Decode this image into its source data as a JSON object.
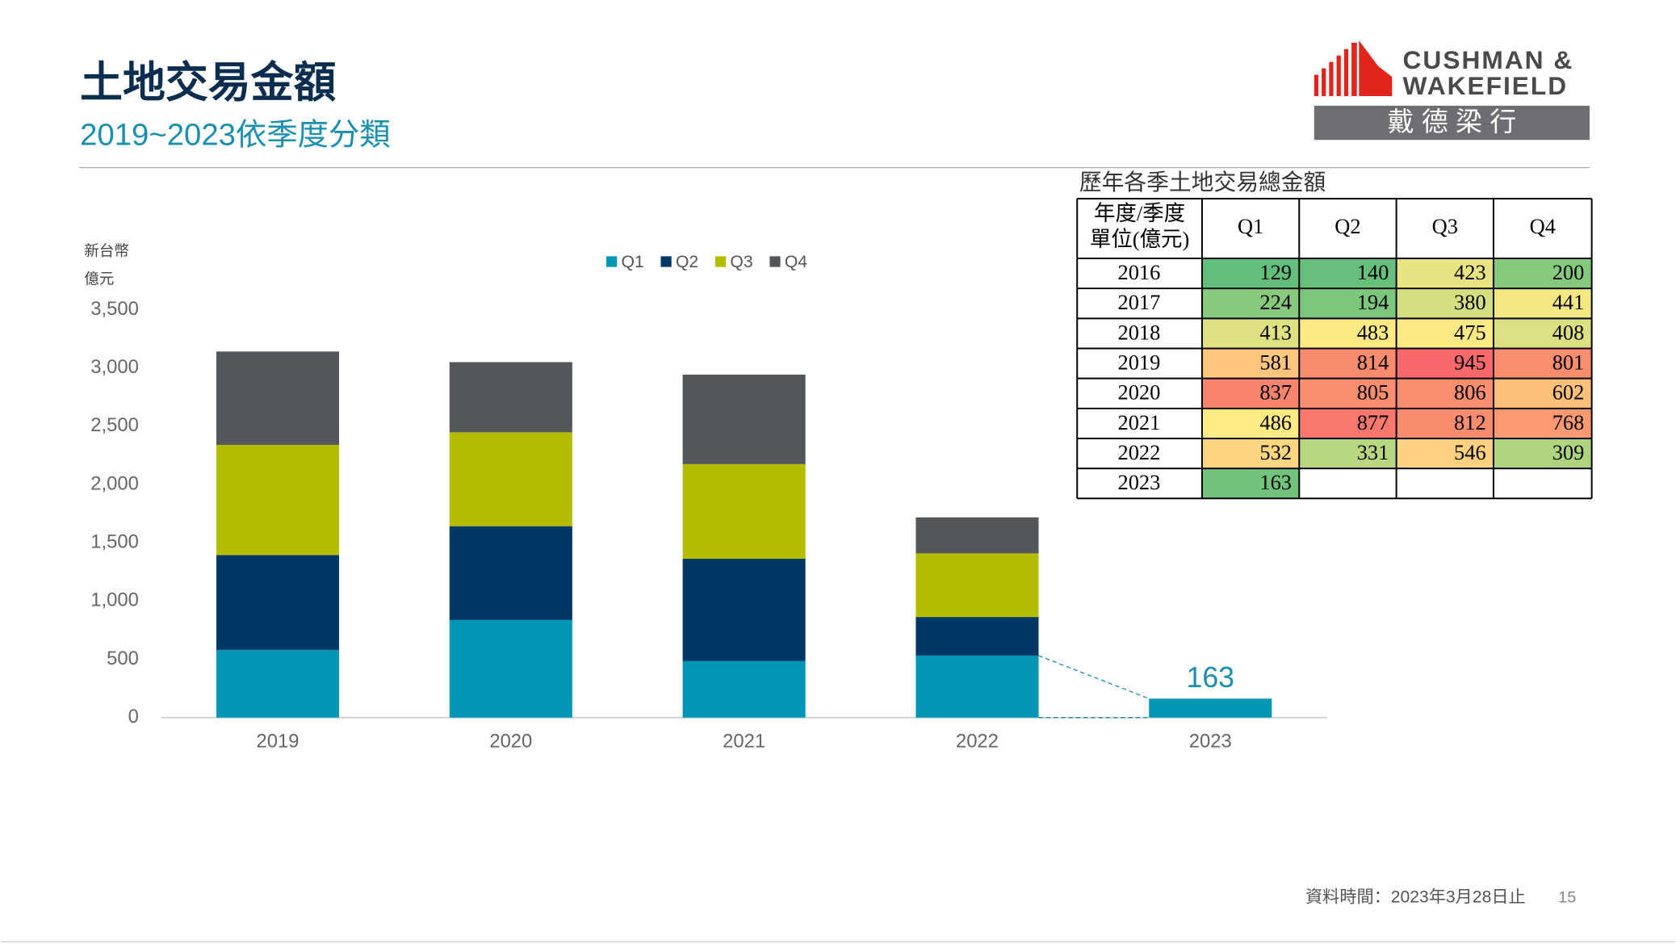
{
  "header": {
    "title": "土地交易金額",
    "subtitle": "2019~2023依季度分類",
    "logo": {
      "line1": "CUSHMAN &",
      "line2": "WAKEFIELD",
      "chinese": "戴 德 梁 行"
    }
  },
  "chart_data": {
    "type": "stacked_bar",
    "ylabel": [
      "新台幣",
      "億元"
    ],
    "categories": [
      "2019",
      "2020",
      "2021",
      "2022",
      "2023"
    ],
    "series": [
      {
        "name": "Q1",
        "color": "#0096b4",
        "values": [
          581,
          837,
          486,
          532,
          163
        ]
      },
      {
        "name": "Q2",
        "color": "#003764",
        "values": [
          814,
          805,
          877,
          331,
          null
        ]
      },
      {
        "name": "Q3",
        "color": "#b4bd00",
        "values": [
          945,
          806,
          812,
          546,
          null
        ]
      },
      {
        "name": "Q4",
        "color": "#53565a",
        "values": [
          801,
          602,
          768,
          309,
          null
        ]
      }
    ],
    "ylim": [
      0,
      3500
    ],
    "yticks": [
      0,
      500,
      {
        "value": 1000,
        "label": "1,000"
      },
      {
        "value": 1500,
        "label": "1,500"
      },
      {
        "value": 2000,
        "label": "2,000"
      },
      {
        "value": 2500,
        "label": "2,500"
      },
      {
        "value": 3000,
        "label": "3,000"
      },
      {
        "value": 3500,
        "label": "3,500"
      }
    ],
    "grid": false,
    "legend": "top"
  },
  "table": {
    "title": "歷年各季土地交易總金額",
    "header": [
      [
        "年度/季度",
        "單位(億元)"
      ],
      "Q1",
      "Q2",
      "Q3",
      "Q4"
    ],
    "rows": [
      [
        "2016",
        "129",
        "140",
        "423",
        "200"
      ],
      [
        "2017",
        "224",
        "194",
        "380",
        "441"
      ],
      [
        "2018",
        "413",
        "483",
        "475",
        "408"
      ],
      [
        "2019",
        "581",
        "814",
        "945",
        "801"
      ],
      [
        "2020",
        "837",
        "805",
        "806",
        "602"
      ],
      [
        "2021",
        "486",
        "877",
        "812",
        "768"
      ],
      [
        "2022",
        "532",
        "331",
        "546",
        "309"
      ],
      [
        "2023",
        "163",
        null,
        null,
        null
      ]
    ],
    "colors": [
      [
        "#63be7b",
        "#67bf7c",
        "#e8e482",
        "#86c97e"
      ],
      [
        "#88c97e",
        "#7dc67d",
        "#d4df81",
        "#f3e783"
      ],
      [
        "#dee282",
        "#fee983",
        "#fbe983",
        "#dbe182"
      ],
      [
        "#fdc67c",
        "#f98b6f",
        "#f8696b",
        "#f98e6f"
      ],
      [
        "#f8846e",
        "#f98e6f",
        "#f98e6f",
        "#fdc07b"
      ],
      [
        "#ffeb84",
        "#f8786d",
        "#f98c6f",
        "#fa9972"
      ],
      [
        "#fed680",
        "#b9d780",
        "#fdd17f",
        "#aed47f"
      ],
      [
        "#73c37c",
        "#ffffff",
        "#ffffff",
        "#ffffff"
      ]
    ]
  },
  "footer": {
    "source": "資料時間：2023年3月28日止",
    "page": "15"
  }
}
